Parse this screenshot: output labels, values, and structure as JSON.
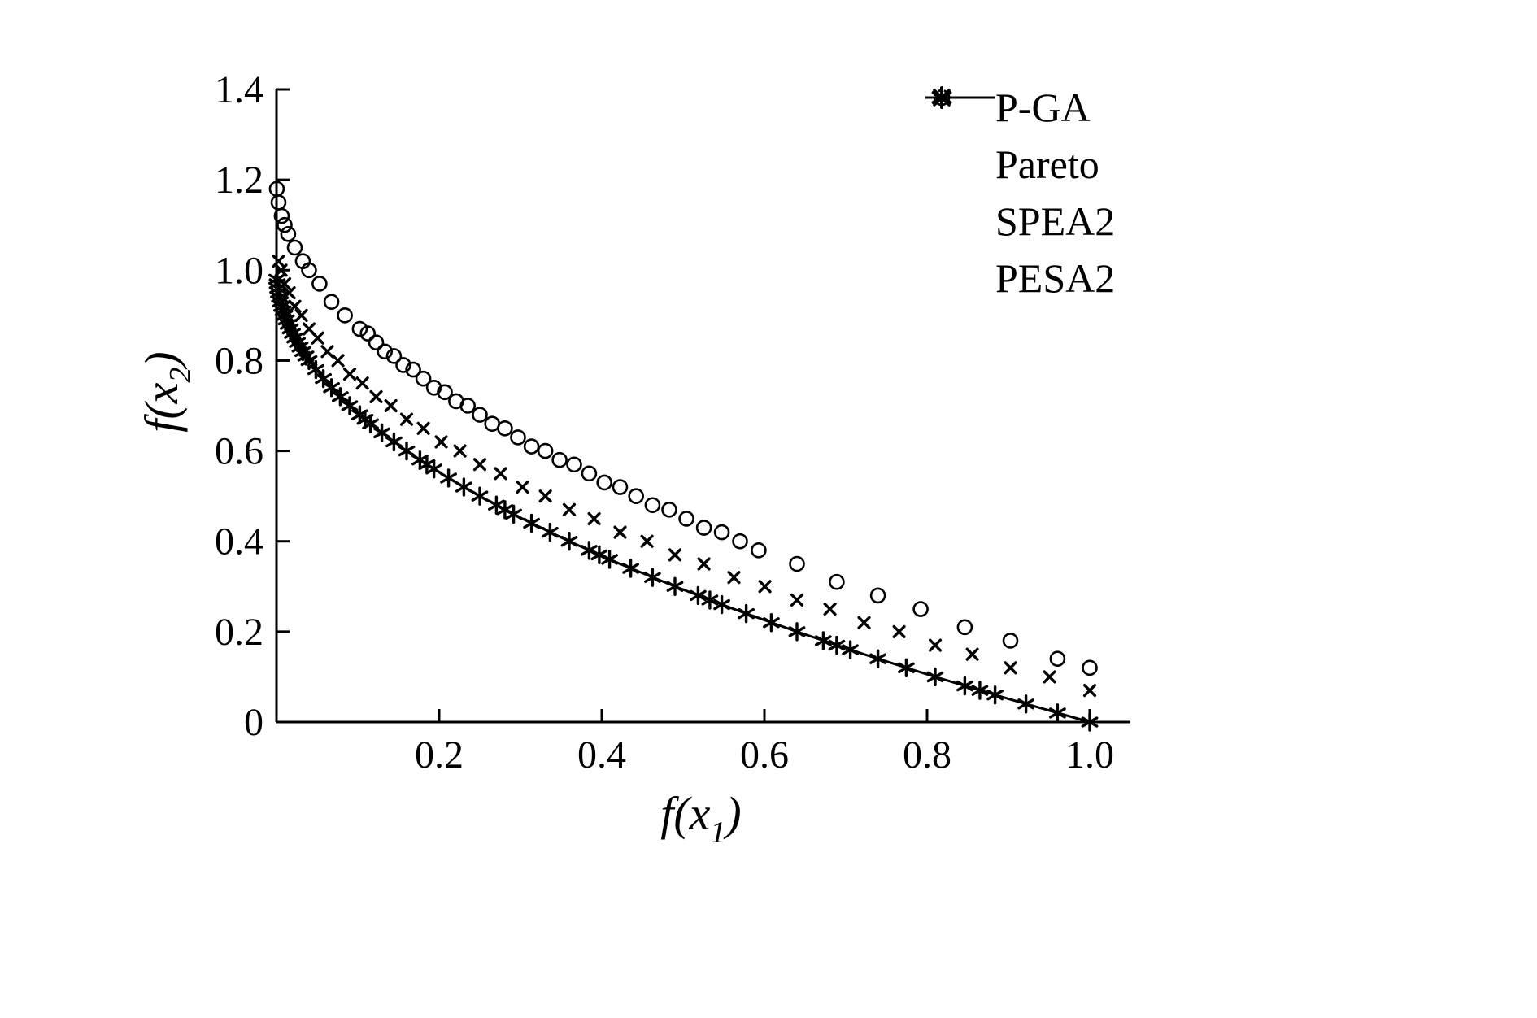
{
  "figure": {
    "background": "#ffffff",
    "ink": "#000000"
  },
  "chart_data": {
    "type": "scatter",
    "title": "",
    "xlabel": "f(x1)",
    "ylabel": "f(x2)",
    "xlabel_parts": {
      "pre": "f(x",
      "sub": "1",
      "post": ")"
    },
    "ylabel_parts": {
      "pre": "f(x",
      "sub": "2",
      "post": ")"
    },
    "xlim": [
      0,
      1.05
    ],
    "ylim": [
      0,
      1.4
    ],
    "grid": false,
    "legend_position": "top-right",
    "x_ticks": [
      0.2,
      0.4,
      0.6,
      0.8,
      1.0
    ],
    "x_tick_labels": [
      "0.2",
      "0.4",
      "0.6",
      "0.8",
      "1.0"
    ],
    "y_ticks": [
      0,
      0.2,
      0.4,
      0.6,
      0.8,
      1.0,
      1.2,
      1.4
    ],
    "y_tick_labels": [
      "0",
      "0.2",
      "0.4",
      "0.6",
      "0.8",
      "1.0",
      "1.2",
      "1.4"
    ],
    "series": [
      {
        "name": "P-GA",
        "marker": "asterisk",
        "points": [
          [
            0.0004,
            0.98
          ],
          [
            0.0009,
            0.97
          ],
          [
            0.0016,
            0.96
          ],
          [
            0.0025,
            0.95
          ],
          [
            0.0036,
            0.94
          ],
          [
            0.0049,
            0.93
          ],
          [
            0.0064,
            0.92
          ],
          [
            0.0081,
            0.91
          ],
          [
            0.01,
            0.9
          ],
          [
            0.0121,
            0.89
          ],
          [
            0.0144,
            0.88
          ],
          [
            0.0169,
            0.87
          ],
          [
            0.0196,
            0.86
          ],
          [
            0.0225,
            0.85
          ],
          [
            0.0256,
            0.84
          ],
          [
            0.0289,
            0.83
          ],
          [
            0.0324,
            0.82
          ],
          [
            0.0361,
            0.81
          ],
          [
            0.04,
            0.8
          ],
          [
            0.0484,
            0.78
          ],
          [
            0.0576,
            0.76
          ],
          [
            0.0676,
            0.74
          ],
          [
            0.0784,
            0.72
          ],
          [
            0.09,
            0.7
          ],
          [
            0.1024,
            0.68
          ],
          [
            0.1089,
            0.67
          ],
          [
            0.1156,
            0.66
          ],
          [
            0.1296,
            0.64
          ],
          [
            0.1444,
            0.62
          ],
          [
            0.16,
            0.6
          ],
          [
            0.1764,
            0.58
          ],
          [
            0.1849,
            0.57
          ],
          [
            0.1936,
            0.56
          ],
          [
            0.2116,
            0.54
          ],
          [
            0.2304,
            0.52
          ],
          [
            0.25,
            0.5
          ],
          [
            0.2704,
            0.48
          ],
          [
            0.2809,
            0.47
          ],
          [
            0.2916,
            0.46
          ],
          [
            0.3136,
            0.44
          ],
          [
            0.3364,
            0.42
          ],
          [
            0.36,
            0.4
          ],
          [
            0.3844,
            0.38
          ],
          [
            0.3969,
            0.37
          ],
          [
            0.4096,
            0.36
          ],
          [
            0.4356,
            0.34
          ],
          [
            0.4624,
            0.32
          ],
          [
            0.49,
            0.3
          ],
          [
            0.5184,
            0.28
          ],
          [
            0.5329,
            0.27
          ],
          [
            0.5476,
            0.26
          ],
          [
            0.5776,
            0.24
          ],
          [
            0.6084,
            0.22
          ],
          [
            0.64,
            0.2
          ],
          [
            0.6724,
            0.18
          ],
          [
            0.6889,
            0.17
          ],
          [
            0.7056,
            0.16
          ],
          [
            0.7396,
            0.14
          ],
          [
            0.7744,
            0.12
          ],
          [
            0.81,
            0.1
          ],
          [
            0.8464,
            0.08
          ],
          [
            0.8649,
            0.07
          ],
          [
            0.8836,
            0.06
          ],
          [
            0.9216,
            0.04
          ],
          [
            0.9604,
            0.02
          ],
          [
            1,
            0
          ]
        ]
      },
      {
        "name": "Pareto",
        "marker": "line",
        "points": [
          [
            0,
            1
          ],
          [
            0.0025,
            0.95
          ],
          [
            0.01,
            0.9
          ],
          [
            0.0225,
            0.85
          ],
          [
            0.04,
            0.8
          ],
          [
            0.0625,
            0.75
          ],
          [
            0.09,
            0.7
          ],
          [
            0.1225,
            0.65
          ],
          [
            0.16,
            0.6
          ],
          [
            0.2025,
            0.55
          ],
          [
            0.25,
            0.5
          ],
          [
            0.3025,
            0.45
          ],
          [
            0.36,
            0.4
          ],
          [
            0.4225,
            0.35
          ],
          [
            0.49,
            0.3
          ],
          [
            0.5625,
            0.25
          ],
          [
            0.64,
            0.2
          ],
          [
            0.7225,
            0.15
          ],
          [
            0.81,
            0.1
          ],
          [
            0.9025,
            0.05
          ],
          [
            1,
            0
          ]
        ]
      },
      {
        "name": "SPEA2",
        "marker": "x",
        "points": [
          [
            0.0025,
            1.02
          ],
          [
            0.0056,
            1.0
          ],
          [
            0.01,
            0.97
          ],
          [
            0.0156,
            0.95
          ],
          [
            0.0225,
            0.92
          ],
          [
            0.0306,
            0.9
          ],
          [
            0.04,
            0.87
          ],
          [
            0.0506,
            0.85
          ],
          [
            0.0625,
            0.82
          ],
          [
            0.0756,
            0.8
          ],
          [
            0.09,
            0.77
          ],
          [
            0.1056,
            0.75
          ],
          [
            0.1225,
            0.72
          ],
          [
            0.1406,
            0.7
          ],
          [
            0.16,
            0.67
          ],
          [
            0.1806,
            0.65
          ],
          [
            0.2025,
            0.62
          ],
          [
            0.2256,
            0.6
          ],
          [
            0.25,
            0.57
          ],
          [
            0.2756,
            0.55
          ],
          [
            0.3025,
            0.52
          ],
          [
            0.3306,
            0.5
          ],
          [
            0.36,
            0.47
          ],
          [
            0.3906,
            0.45
          ],
          [
            0.4225,
            0.42
          ],
          [
            0.4556,
            0.4
          ],
          [
            0.49,
            0.37
          ],
          [
            0.5256,
            0.35
          ],
          [
            0.5625,
            0.32
          ],
          [
            0.6006,
            0.3
          ],
          [
            0.64,
            0.27
          ],
          [
            0.6806,
            0.25
          ],
          [
            0.7225,
            0.22
          ],
          [
            0.7656,
            0.2
          ],
          [
            0.81,
            0.17
          ],
          [
            0.8556,
            0.15
          ],
          [
            0.9025,
            0.12
          ],
          [
            0.9506,
            0.1
          ],
          [
            1,
            0.07
          ]
        ]
      },
      {
        "name": "PESA2",
        "marker": "circle",
        "points": [
          [
            0.0004,
            1.18
          ],
          [
            0.0025,
            1.15
          ],
          [
            0.0064,
            1.12
          ],
          [
            0.01,
            1.1
          ],
          [
            0.0144,
            1.08
          ],
          [
            0.0225,
            1.05
          ],
          [
            0.0324,
            1.02
          ],
          [
            0.04,
            1.0
          ],
          [
            0.0529,
            0.97
          ],
          [
            0.0676,
            0.93
          ],
          [
            0.0841,
            0.9
          ],
          [
            0.1024,
            0.87
          ],
          [
            0.1122,
            0.86
          ],
          [
            0.1225,
            0.84
          ],
          [
            0.1332,
            0.82
          ],
          [
            0.1444,
            0.81
          ],
          [
            0.156,
            0.79
          ],
          [
            0.1681,
            0.78
          ],
          [
            0.1806,
            0.76
          ],
          [
            0.1936,
            0.74
          ],
          [
            0.207,
            0.73
          ],
          [
            0.2209,
            0.71
          ],
          [
            0.2352,
            0.7
          ],
          [
            0.25,
            0.68
          ],
          [
            0.2652,
            0.66
          ],
          [
            0.2809,
            0.65
          ],
          [
            0.297,
            0.63
          ],
          [
            0.3136,
            0.61
          ],
          [
            0.3306,
            0.6
          ],
          [
            0.3481,
            0.58
          ],
          [
            0.366,
            0.57
          ],
          [
            0.3844,
            0.55
          ],
          [
            0.4032,
            0.53
          ],
          [
            0.4225,
            0.52
          ],
          [
            0.4422,
            0.5
          ],
          [
            0.4624,
            0.48
          ],
          [
            0.483,
            0.47
          ],
          [
            0.5041,
            0.45
          ],
          [
            0.5256,
            0.43
          ],
          [
            0.5476,
            0.42
          ],
          [
            0.57,
            0.4
          ],
          [
            0.5929,
            0.38
          ],
          [
            0.64,
            0.35
          ],
          [
            0.6889,
            0.31
          ],
          [
            0.7396,
            0.28
          ],
          [
            0.7921,
            0.25
          ],
          [
            0.8464,
            0.21
          ],
          [
            0.9025,
            0.18
          ],
          [
            0.9604,
            0.14
          ],
          [
            1,
            0.12
          ]
        ]
      }
    ]
  },
  "legend": {
    "items": [
      {
        "label": "P-GA"
      },
      {
        "label": "Pareto"
      },
      {
        "label": "SPEA2"
      },
      {
        "label": "PESA2"
      }
    ]
  }
}
